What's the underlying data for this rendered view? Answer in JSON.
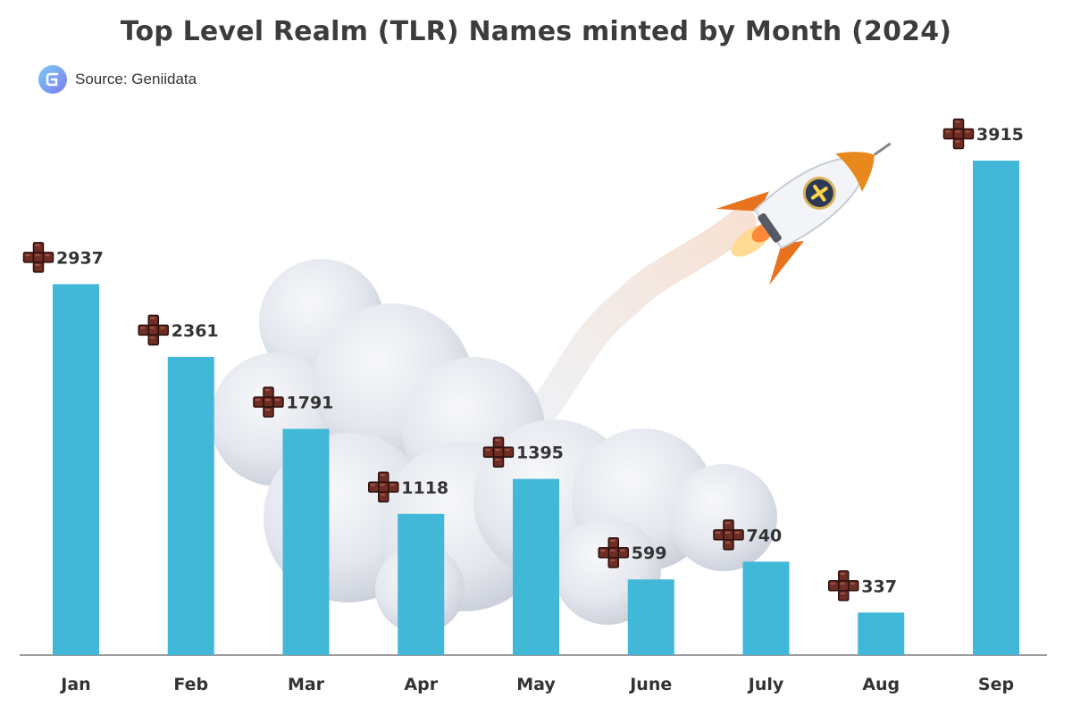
{
  "title": "Top Level Realm (TLR) Names minted by Month (2024)",
  "source": "Source: Geniidata",
  "colors": {
    "bar": "#41b8d8",
    "text": "#333333",
    "icon": "#6e2e24"
  },
  "icons": {
    "source_logo": "geniidata-logo-icon",
    "value_marker": "brown-cube-cross-icon",
    "decoration": "rocket-icon"
  },
  "chart_data": {
    "type": "bar",
    "title": "Top Level Realm (TLR) Names minted by Month (2024)",
    "categories": [
      "Jan",
      "Feb",
      "Mar",
      "Apr",
      "May",
      "June",
      "July",
      "Aug",
      "Sep"
    ],
    "values": [
      2937,
      2361,
      1791,
      1118,
      1395,
      599,
      740,
      337,
      3915
    ],
    "xlabel": "",
    "ylabel": "",
    "ylim": [
      0,
      3915
    ],
    "grid": false,
    "legend": "none"
  }
}
